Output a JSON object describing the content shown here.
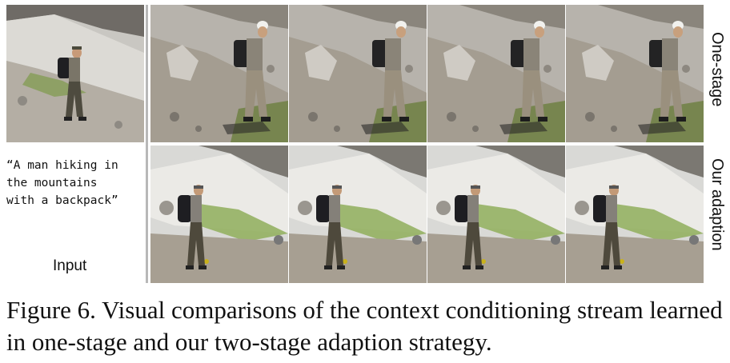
{
  "figure": {
    "input_prompt": "“A man hiking in\nthe mountains\nwith a backpack”",
    "input_label": "Input",
    "rows": [
      {
        "label": "One-stage",
        "frames": 4
      },
      {
        "label": "Our adaption",
        "frames": 4
      }
    ],
    "icons": [
      "hiker-photo"
    ]
  },
  "caption": "Figure 6.  Visual comparisons of the context conditioning stream learned in one-stage and our two-stage adaption strategy."
}
